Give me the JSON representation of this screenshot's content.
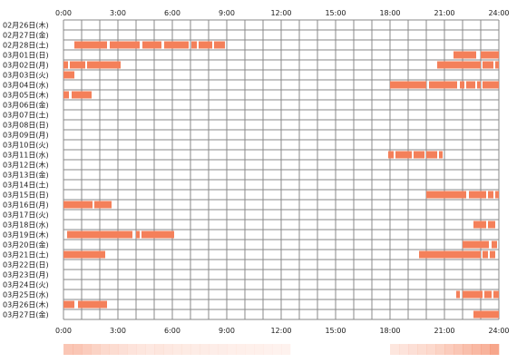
{
  "chart_data": {
    "type": "bar",
    "x_unit": "hours",
    "xlim": [
      0,
      24
    ],
    "x_ticks": [
      "0:00",
      "3:00",
      "6:00",
      "9:00",
      "12:00",
      "15:00",
      "18:00",
      "21:00",
      "24:00"
    ],
    "colors": {
      "bar": "#f4805a",
      "grid": "#888888",
      "summary_strip": "#f4805a"
    },
    "rows": [
      {
        "label": "02月26日(木)",
        "intervals": []
      },
      {
        "label": "02月27日(金)",
        "intervals": []
      },
      {
        "label": "02月28日(土)",
        "intervals": [
          [
            0.6,
            2.4
          ],
          [
            2.55,
            4.2
          ],
          [
            4.35,
            5.4
          ],
          [
            5.55,
            6.9
          ],
          [
            7.05,
            7.35
          ],
          [
            7.45,
            8.2
          ],
          [
            8.3,
            8.9
          ]
        ]
      },
      {
        "label": "03月01日(日)",
        "intervals": [
          [
            21.5,
            22.75
          ],
          [
            23.0,
            24.0
          ]
        ]
      },
      {
        "label": "03月02日(月)",
        "intervals": [
          [
            0.0,
            0.25
          ],
          [
            0.35,
            1.2
          ],
          [
            1.3,
            3.15
          ],
          [
            20.6,
            23.0
          ],
          [
            23.1,
            23.7
          ],
          [
            23.8,
            24.0
          ]
        ]
      },
      {
        "label": "03月03日(火)",
        "intervals": [
          [
            0.0,
            0.6
          ]
        ]
      },
      {
        "label": "03月04日(水)",
        "intervals": [
          [
            18.0,
            20.0
          ],
          [
            20.15,
            21.7
          ],
          [
            21.85,
            22.1
          ],
          [
            22.2,
            22.7
          ],
          [
            22.8,
            23.0
          ],
          [
            23.1,
            24.0
          ]
        ]
      },
      {
        "label": "03月05日(木)",
        "intervals": [
          [
            0.0,
            0.3
          ],
          [
            0.45,
            1.55
          ]
        ]
      },
      {
        "label": "03月06日(金)",
        "intervals": []
      },
      {
        "label": "03月07日(土)",
        "intervals": []
      },
      {
        "label": "03月08日(日)",
        "intervals": []
      },
      {
        "label": "03月09日(月)",
        "intervals": []
      },
      {
        "label": "03月10日(火)",
        "intervals": []
      },
      {
        "label": "03月11日(水)",
        "intervals": [
          [
            17.9,
            18.2
          ],
          [
            18.3,
            19.2
          ],
          [
            19.3,
            19.9
          ],
          [
            20.0,
            20.6
          ],
          [
            20.7,
            20.9
          ]
        ]
      },
      {
        "label": "03月12日(木)",
        "intervals": []
      },
      {
        "label": "03月13日(金)",
        "intervals": []
      },
      {
        "label": "03月14日(土)",
        "intervals": []
      },
      {
        "label": "03月15日(日)",
        "intervals": [
          [
            20.0,
            22.2
          ],
          [
            22.35,
            23.3
          ],
          [
            23.4,
            23.7
          ],
          [
            23.8,
            24.0
          ]
        ]
      },
      {
        "label": "03月16日(月)",
        "intervals": [
          [
            0.0,
            1.6
          ],
          [
            1.7,
            2.65
          ]
        ]
      },
      {
        "label": "03月17日(火)",
        "intervals": []
      },
      {
        "label": "03月18日(水)",
        "intervals": [
          [
            22.6,
            23.3
          ],
          [
            23.4,
            23.8
          ]
        ]
      },
      {
        "label": "03月19日(木)",
        "intervals": [
          [
            0.2,
            3.8
          ],
          [
            4.0,
            4.2
          ],
          [
            4.3,
            6.1
          ]
        ]
      },
      {
        "label": "03月20日(金)",
        "intervals": [
          [
            22.0,
            23.45
          ],
          [
            23.6,
            23.9
          ]
        ]
      },
      {
        "label": "03月21日(土)",
        "intervals": [
          [
            0.0,
            2.3
          ],
          [
            19.6,
            23.0
          ],
          [
            23.1,
            23.4
          ],
          [
            23.5,
            23.8
          ]
        ]
      },
      {
        "label": "03月22日(日)",
        "intervals": []
      },
      {
        "label": "03月23日(月)",
        "intervals": []
      },
      {
        "label": "03月24日(火)",
        "intervals": []
      },
      {
        "label": "03月25日(水)",
        "intervals": [
          [
            21.65,
            21.85
          ],
          [
            22.0,
            23.1
          ],
          [
            23.2,
            23.6
          ],
          [
            23.7,
            24.0
          ]
        ]
      },
      {
        "label": "03月26日(木)",
        "intervals": [
          [
            0.0,
            0.6
          ],
          [
            0.8,
            2.4
          ]
        ]
      },
      {
        "label": "03月27日(金)",
        "intervals": [
          [
            22.6,
            24.0
          ]
        ]
      }
    ],
    "summary_strip": [
      0.45,
      0.45,
      0.4,
      0.35,
      0.3,
      0.28,
      0.25,
      0.22,
      0.2,
      0.18,
      0.2,
      0.18,
      0.17,
      0.16,
      0.15,
      0.15,
      0.14,
      0.14,
      0.13,
      0.13,
      0.12,
      0.12,
      0.11,
      0.1,
      0.1,
      0.0,
      0.0,
      0.0,
      0.0,
      0.0,
      0.0,
      0.0,
      0.0,
      0.0,
      0.0,
      0.0,
      0.2,
      0.22,
      0.25,
      0.28,
      0.3,
      0.35,
      0.4,
      0.45,
      0.5,
      0.55,
      0.6,
      0.7
    ]
  }
}
